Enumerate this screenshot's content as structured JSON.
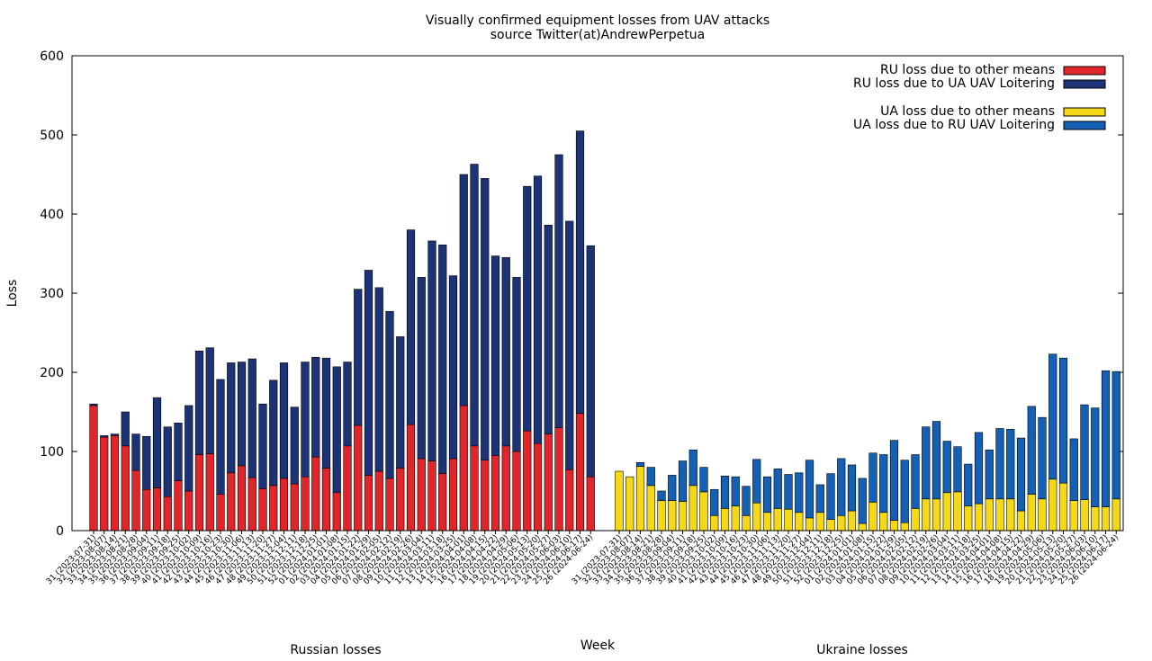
{
  "chart_data": {
    "type": "bar",
    "stacked": true,
    "title": "Visually confirmed equipment losses from UAV attacks",
    "subtitle": "source Twitter(at)AndrewPerpetua",
    "xlabel": "Week",
    "ylabel": "Loss",
    "ylim": [
      0,
      600
    ],
    "yticks": [
      "0",
      "100",
      "200",
      "300",
      "400",
      "500",
      "600"
    ],
    "grid": false,
    "legend_position": "top-right",
    "groups": [
      {
        "label": "Russian losses",
        "categories": [
          "31 (2023-07-31)",
          "32 (2023-08-07)",
          "33 (2023-08-14)",
          "34 (2023-08-21)",
          "35 (2023-08-28)",
          "36 (2023-09-04)",
          "37 (2023-09-11)",
          "38 (2023-09-18)",
          "39 (2023-09-25)",
          "40 (2023-10-02)",
          "41 (2023-10-09)",
          "42 (2023-10-16)",
          "43 (2023-10-23)",
          "44 (2023-10-30)",
          "45 (2023-11-06)",
          "46 (2023-11-13)",
          "47 (2023-11-20)",
          "48 (2023-11-27)",
          "49 (2023-12-04)",
          "50 (2023-12-11)",
          "51 (2023-12-18)",
          "52 (2023-12-25)",
          "01 (2024-01-01)",
          "02 (2024-01-08)",
          "03 (2024-01-15)",
          "04 (2024-01-22)",
          "05 (2024-01-29)",
          "06 (2024-02-05)",
          "07 (2024-02-12)",
          "08 (2024-02-19)",
          "09 (2024-02-26)",
          "10 (2024-03-04)",
          "11 (2024-03-11)",
          "12 (2024-03-18)",
          "13 (2024-03-25)",
          "14 (2024-04-01)",
          "15 (2024-04-08)",
          "16 (2024-04-15)",
          "17 (2024-04-22)",
          "18 (2024-04-29)",
          "19 (2024-05-06)",
          "20 (2024-05-13)",
          "21 (2024-05-20)",
          "22 (2024-05-27)",
          "23 (2024-06-03)",
          "24 (2024-06-10)",
          "25 (2024-06-17)",
          "26 (2024-06-24)"
        ],
        "series": [
          {
            "name": "RU loss due to other means",
            "color": "#e0262a",
            "values": [
              158,
              118,
              120,
              107,
              76,
              52,
              54,
              43,
              63,
              50,
              96,
              97,
              46,
              73,
              82,
              67,
              53,
              57,
              66,
              59,
              68,
              93,
              79,
              48,
              107,
              133,
              70,
              75,
              66,
              79,
              134,
              91,
              88,
              72,
              91,
              158,
              107,
              89,
              95,
              107,
              100,
              126,
              110,
              122,
              130,
              77,
              148,
              68
            ]
          },
          {
            "name": "RU loss due to UA UAV Loitering",
            "color": "#1d3377",
            "values": [
              2,
              2,
              2,
              43,
              46,
              67,
              114,
              88,
              73,
              108,
              131,
              134,
              145,
              139,
              131,
              150,
              107,
              133,
              146,
              97,
              145,
              126,
              139,
              159,
              106,
              172,
              259,
              232,
              211,
              166,
              246,
              229,
              278,
              289,
              231,
              292,
              356,
              356,
              252,
              238,
              220,
              309,
              338,
              264,
              345,
              314,
              357,
              292
            ]
          }
        ]
      },
      {
        "label": "Ukraine losses",
        "categories": [
          "31 (2023-07-31)",
          "32 (2023-08-07)",
          "33 (2023-08-14)",
          "34 (2023-08-21)",
          "35 (2023-08-28)",
          "36 (2023-09-04)",
          "37 (2023-09-11)",
          "38 (2023-09-18)",
          "39 (2023-09-25)",
          "40 (2023-10-02)",
          "41 (2023-10-09)",
          "42 (2023-10-16)",
          "43 (2023-10-23)",
          "44 (2023-10-30)",
          "45 (2023-11-06)",
          "46 (2023-11-13)",
          "47 (2023-11-20)",
          "48 (2023-11-27)",
          "49 (2023-12-04)",
          "50 (2023-12-11)",
          "51 (2023-12-18)",
          "52 (2023-12-25)",
          "01 (2024-01-01)",
          "02 (2024-01-08)",
          "03 (2024-01-15)",
          "04 (2024-01-22)",
          "05 (2024-01-29)",
          "06 (2024-02-05)",
          "07 (2024-02-12)",
          "08 (2024-02-19)",
          "09 (2024-02-26)",
          "10 (2024-03-04)",
          "11 (2024-03-11)",
          "12 (2024-03-18)",
          "13 (2024-03-25)",
          "14 (2024-04-01)",
          "15 (2024-04-08)",
          "16 (2024-04-15)",
          "17 (2024-04-22)",
          "18 (2024-04-29)",
          "19 (2024-05-06)",
          "20 (2024-05-13)",
          "21 (2024-05-20)",
          "22 (2024-05-27)",
          "23 (2024-06-03)",
          "24 (2024-06-10)",
          "25 (2024-06-17)",
          "26 (2024-06-24)"
        ],
        "series": [
          {
            "name": "UA loss due to other means",
            "color": "#f5d916",
            "values": [
              75,
              68,
              81,
              57,
              38,
              38,
              37,
              57,
              49,
              19,
              28,
              31,
              19,
              35,
              23,
              28,
              27,
              23,
              16,
              23,
              14,
              19,
              25,
              9,
              36,
              23,
              13,
              10,
              28,
              40,
              40,
              48,
              49,
              31,
              34,
              40,
              40,
              40,
              25,
              46,
              40,
              65,
              60,
              38,
              39,
              30,
              30,
              40
            ]
          },
          {
            "name": "UA loss due to RU UAV Loitering",
            "color": "#1460b5",
            "values": [
              0,
              0,
              5,
              23,
              12,
              32,
              51,
              45,
              31,
              33,
              41,
              37,
              37,
              55,
              45,
              50,
              44,
              50,
              73,
              35,
              58,
              72,
              58,
              57,
              62,
              73,
              101,
              79,
              68,
              91,
              98,
              65,
              57,
              53,
              90,
              62,
              89,
              88,
              92,
              111,
              103,
              158,
              158,
              78,
              120,
              125,
              172,
              161
            ]
          }
        ]
      }
    ]
  }
}
